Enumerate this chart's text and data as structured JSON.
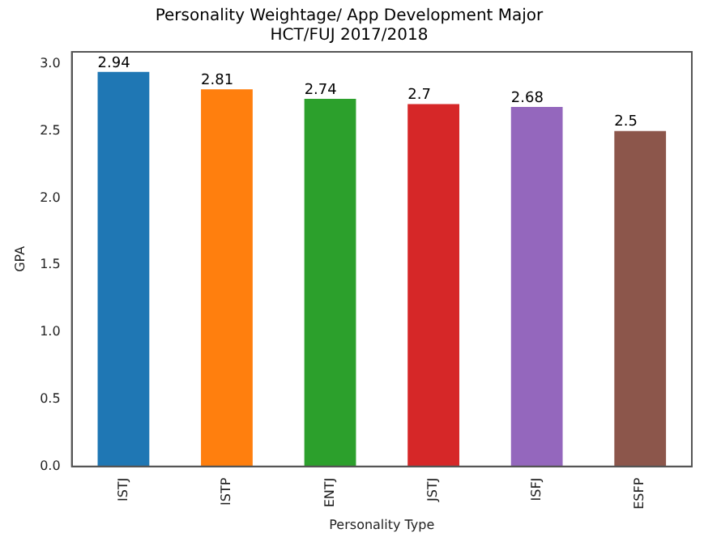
{
  "chart_data": {
    "type": "bar",
    "title": "Personality Weightage/ App Development Major\nHCT/FUJ 2017/2018",
    "xlabel": "Personality Type",
    "ylabel": "GPA",
    "categories": [
      "ISTJ",
      "ISTP",
      "ENTJ",
      "JSTJ",
      "ISFJ",
      "ESFP"
    ],
    "values": [
      2.94,
      2.81,
      2.74,
      2.7,
      2.68,
      2.5
    ],
    "colors": [
      "#1f77b4",
      "#ff7f0e",
      "#2ca02c",
      "#d62728",
      "#9467bd",
      "#8c564b"
    ],
    "value_labels": [
      "2.94",
      "2.81",
      "2.74",
      "2.7",
      "2.68",
      "2.5"
    ],
    "ylim": [
      0,
      3.09
    ],
    "yticks": [
      {
        "value": 0,
        "label": "0.0"
      },
      {
        "value": 0.5,
        "label": "0.5"
      },
      {
        "value": 1,
        "label": "1.0"
      },
      {
        "value": 1.5,
        "label": "1.5"
      },
      {
        "value": 2,
        "label": "2.0"
      },
      {
        "value": 2.5,
        "label": "2.5"
      },
      {
        "value": 3,
        "label": "3.0"
      }
    ],
    "grid": false,
    "legend": false
  }
}
